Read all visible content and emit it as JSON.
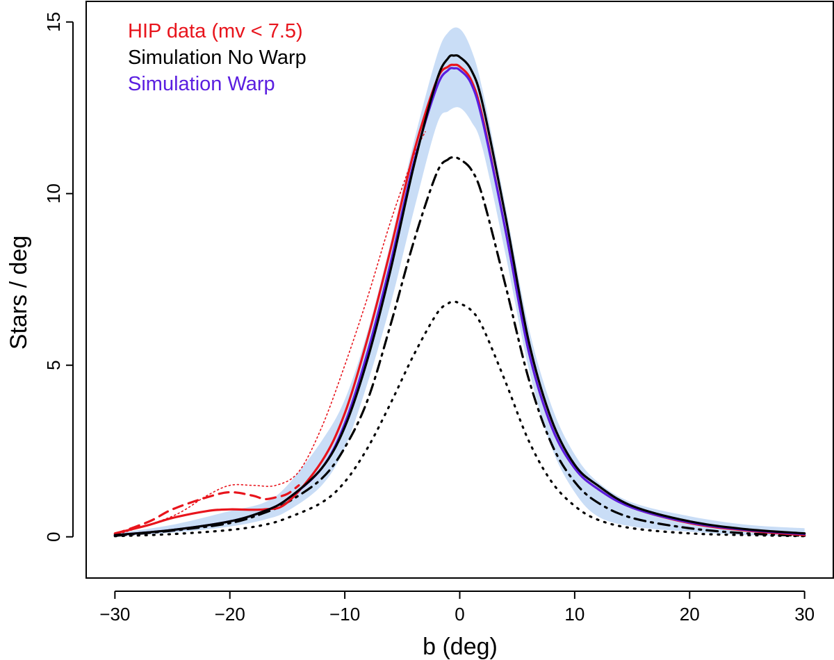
{
  "chart_data": {
    "type": "line",
    "xlabel": "b (deg)",
    "ylabel": "Stars / deg",
    "xlim": [
      -32.5,
      32.5
    ],
    "ylim": [
      -1.2,
      15.6
    ],
    "x_ticks": [
      -30,
      -20,
      -10,
      0,
      10,
      20,
      30
    ],
    "x_tick_labels": [
      "−30",
      "−20",
      "−10",
      "0",
      "10",
      "20",
      "30"
    ],
    "y_ticks": [
      0,
      5,
      10,
      15
    ],
    "y_tick_labels": [
      "0",
      "5",
      "10",
      "15"
    ],
    "legend": {
      "position": "top-left",
      "entries": [
        {
          "label": "HIP data (mv < 7.5)",
          "color": "#e8141c"
        },
        {
          "label": "Simulation No Warp",
          "color": "#000000"
        },
        {
          "label": "Simulation Warp",
          "color": "#5a1ee0"
        }
      ]
    },
    "band": {
      "name": "Simulation range",
      "color": "#c9ddf6",
      "x": [
        -30,
        -25,
        -20,
        -17,
        -15,
        -12,
        -10,
        -8,
        -6,
        -4,
        -2,
        -1,
        0,
        1,
        2,
        4,
        6,
        8,
        10,
        12,
        15,
        20,
        25,
        30
      ],
      "upper": [
        0.1,
        0.35,
        0.75,
        1.0,
        1.5,
        2.8,
        4.0,
        6.0,
        8.6,
        11.5,
        14.0,
        14.7,
        14.8,
        14.2,
        13.0,
        9.6,
        6.1,
        3.8,
        2.4,
        1.6,
        1.0,
        0.6,
        0.35,
        0.25
      ],
      "lower": [
        0.02,
        0.12,
        0.3,
        0.5,
        0.75,
        1.5,
        2.6,
        4.5,
        6.8,
        9.5,
        12.0,
        12.4,
        12.5,
        12.1,
        11.3,
        8.2,
        4.9,
        2.6,
        1.3,
        0.6,
        0.3,
        0.15,
        0.05,
        0.02
      ]
    },
    "series": [
      {
        "name": "Simulation No Warp",
        "color": "#000000",
        "style": "solid",
        "width": 3.2,
        "x": [
          -30,
          -25,
          -20,
          -17,
          -15,
          -12,
          -10,
          -8,
          -6,
          -4,
          -2,
          -1,
          -0.5,
          0,
          1,
          2,
          4,
          6,
          8,
          10,
          12,
          15,
          20,
          25,
          30
        ],
        "y": [
          0.05,
          0.2,
          0.45,
          0.75,
          1.1,
          2.0,
          3.2,
          5.2,
          7.8,
          10.8,
          13.3,
          13.95,
          14.02,
          13.98,
          13.6,
          12.6,
          9.3,
          5.7,
          3.4,
          2.1,
          1.5,
          0.9,
          0.45,
          0.22,
          0.1
        ]
      },
      {
        "name": "Simulation Warp",
        "color": "#5a1ee0",
        "style": "solid",
        "width": 3.2,
        "x": [
          -30,
          -25,
          -20,
          -17,
          -15,
          -12,
          -10,
          -8,
          -6,
          -4,
          -2,
          -1,
          -0.5,
          0,
          1,
          2,
          4,
          6,
          8,
          10,
          12,
          15,
          20,
          25,
          30
        ],
        "y": [
          0.05,
          0.2,
          0.45,
          0.75,
          1.1,
          2.0,
          3.3,
          5.4,
          8.0,
          10.9,
          13.1,
          13.6,
          13.65,
          13.6,
          13.2,
          12.1,
          8.9,
          5.4,
          3.2,
          2.0,
          1.4,
          0.85,
          0.42,
          0.2,
          0.08
        ]
      },
      {
        "name": "HIP data (mv < 7.5)",
        "color": "#e8141c",
        "style": "solid",
        "width": 3.2,
        "x": [
          -30,
          -27,
          -25,
          -22,
          -20,
          -17,
          -15,
          -12,
          -10,
          -8,
          -6,
          -4,
          -2,
          -1,
          -0.5,
          0,
          1,
          2,
          4,
          6,
          8,
          10,
          12,
          15,
          20,
          25,
          30
        ],
        "y": [
          0.1,
          0.35,
          0.55,
          0.75,
          0.8,
          0.8,
          1.0,
          2.2,
          3.6,
          5.8,
          8.4,
          11.2,
          13.3,
          13.7,
          13.75,
          13.7,
          13.3,
          12.2,
          8.9,
          5.4,
          3.2,
          2.0,
          1.4,
          0.85,
          0.4,
          0.18,
          0.05
        ]
      },
      {
        "name": "HIP data dashed",
        "color": "#e8141c",
        "style": "dashed",
        "width": 3.2,
        "x": [
          -30,
          -27,
          -25,
          -22,
          -20,
          -18,
          -17,
          -16,
          -15,
          -14
        ],
        "y": [
          0.08,
          0.45,
          0.8,
          1.15,
          1.3,
          1.2,
          1.1,
          1.15,
          1.25,
          1.5
        ]
      },
      {
        "name": "HIP data dotted",
        "color": "#e8141c",
        "style": "dotted-thin",
        "width": 1.6,
        "x": [
          -30,
          -25,
          -22,
          -20,
          -18,
          -16,
          -14,
          -12,
          -10,
          -8,
          -6,
          -4,
          -3
        ],
        "y": [
          0.05,
          0.6,
          1.2,
          1.5,
          1.5,
          1.5,
          1.9,
          3.2,
          5.0,
          7.0,
          9.2,
          11.1,
          11.8
        ]
      },
      {
        "name": "Component dash-dot",
        "color": "#000000",
        "style": "dashdot",
        "width": 3.2,
        "x": [
          -30,
          -25,
          -20,
          -17,
          -15,
          -12,
          -10,
          -8,
          -6,
          -4,
          -2,
          -1,
          -0.5,
          0,
          1,
          2,
          4,
          6,
          8,
          10,
          12,
          15,
          20,
          25,
          30
        ],
        "y": [
          0.03,
          0.18,
          0.4,
          0.7,
          1.0,
          1.7,
          2.6,
          4.0,
          6.2,
          8.6,
          10.6,
          11.0,
          11.05,
          11.0,
          10.7,
          9.9,
          7.3,
          4.6,
          2.7,
          1.6,
          1.0,
          0.55,
          0.25,
          0.1,
          0.03
        ]
      },
      {
        "name": "Component dotted",
        "color": "#000000",
        "style": "dotted",
        "width": 3.2,
        "x": [
          -30,
          -25,
          -20,
          -17,
          -15,
          -12,
          -10,
          -8,
          -6,
          -4,
          -2,
          -1,
          -0.5,
          0,
          1,
          2,
          4,
          6,
          8,
          10,
          12,
          15,
          20,
          25,
          30
        ],
        "y": [
          0.02,
          0.08,
          0.2,
          0.35,
          0.55,
          1.0,
          1.6,
          2.6,
          3.9,
          5.3,
          6.5,
          6.8,
          6.85,
          6.8,
          6.6,
          6.1,
          4.5,
          2.8,
          1.6,
          0.9,
          0.5,
          0.25,
          0.1,
          0.05,
          0.02
        ]
      }
    ]
  }
}
